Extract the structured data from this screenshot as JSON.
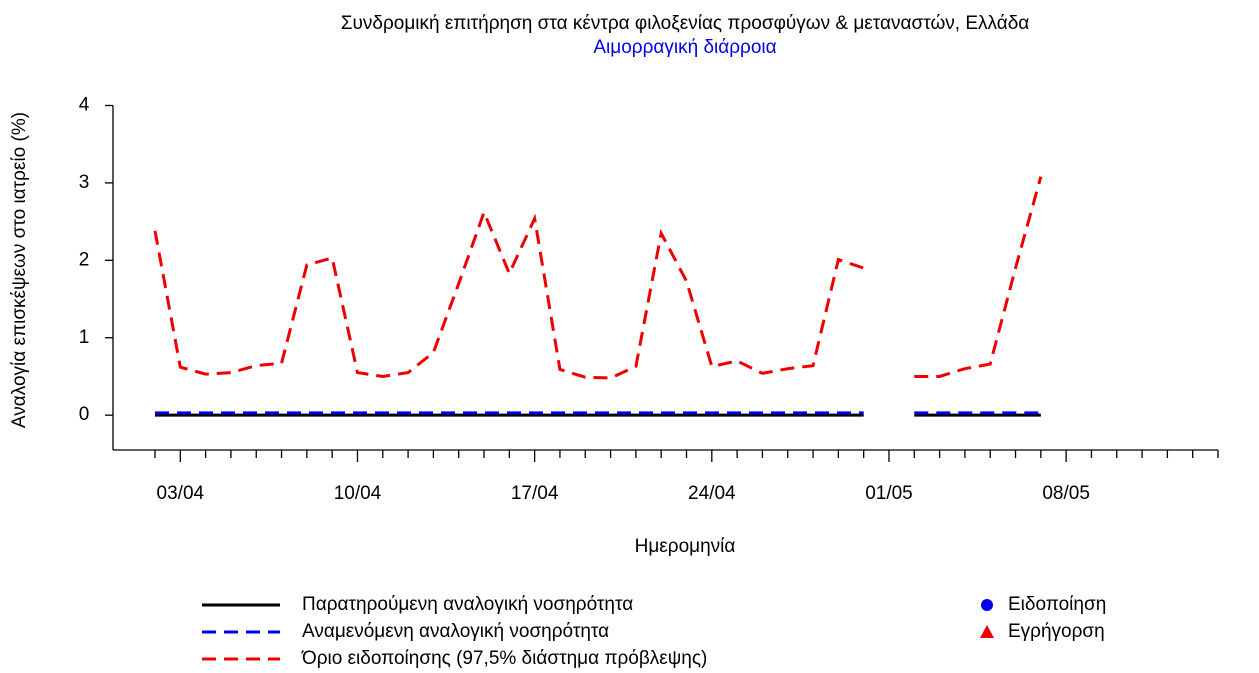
{
  "chart_data": {
    "type": "line",
    "title": "Συνδρομική επιτήρηση στα κέντρα φιλοξενίας προσφύγων & μεταναστών, Ελλάδα",
    "subtitle": "Αιμορραγική διάρροια",
    "subtitle_color": "#0000ee",
    "x_label": "Ημερομηνία",
    "y_label": "Αναλογία επισκέψεων στο ιατρείο (%)",
    "categories": [
      null,
      "03/04",
      null,
      null,
      null,
      null,
      null,
      null,
      "10/04",
      null,
      null,
      null,
      null,
      null,
      null,
      "17/04",
      null,
      null,
      null,
      null,
      null,
      null,
      "24/04",
      null,
      null,
      null,
      null,
      null,
      null,
      "01/05",
      null,
      null,
      null,
      null,
      null,
      null,
      "08/05",
      null,
      null,
      null,
      null,
      null,
      null
    ],
    "ylim": [
      -0.45,
      4.2
    ],
    "yticks": [
      0,
      1,
      2,
      3,
      4
    ],
    "series": [
      {
        "name": "Παρατηρούμενη αναλογική νοσηρότητα",
        "color": "#000000",
        "dash": "solid",
        "values": [
          0,
          0,
          0,
          0,
          0,
          0,
          0,
          0,
          0,
          0,
          0,
          0,
          0,
          0,
          0,
          0,
          0,
          0,
          0,
          0,
          0,
          0,
          0,
          0,
          0,
          0,
          0,
          0,
          0,
          null,
          0,
          0,
          0,
          0,
          0,
          0,
          null,
          null,
          null,
          null,
          null,
          null,
          null
        ]
      },
      {
        "name": "Αναμενόμενη αναλογική νοσηρότητα",
        "color": "#0000ee",
        "dash": "dashed",
        "values": [
          0.03,
          0.03,
          0.03,
          0.03,
          0.03,
          0.03,
          0.03,
          0.03,
          0.03,
          0.03,
          0.03,
          0.03,
          0.03,
          0.03,
          0.03,
          0.03,
          0.03,
          0.03,
          0.03,
          0.03,
          0.03,
          0.03,
          0.03,
          0.03,
          0.03,
          0.03,
          0.03,
          0.03,
          0.03,
          null,
          0.03,
          0.03,
          0.03,
          0.03,
          0.03,
          0.03,
          null,
          null,
          null,
          null,
          null,
          null,
          null
        ]
      },
      {
        "name": "Όριο ειδοποίησης (97,5% διάστημα πρόβλεψης)",
        "color": "#ee0000",
        "dash": "dashed",
        "values": [
          2.38,
          0.62,
          0.53,
          0.55,
          0.64,
          0.67,
          1.94,
          2.03,
          0.55,
          0.5,
          0.55,
          0.81,
          1.7,
          2.62,
          1.83,
          2.54,
          0.59,
          0.49,
          0.48,
          0.63,
          2.35,
          1.73,
          0.63,
          0.7,
          0.54,
          0.6,
          0.64,
          2.01,
          1.9,
          null,
          0.5,
          0.5,
          0.6,
          0.66,
          1.9,
          3.08,
          null,
          null,
          null,
          null,
          null,
          null,
          null
        ]
      }
    ],
    "markers": [
      {
        "name": "Ειδοποίηση",
        "color": "#0000ee",
        "shape": "circle"
      },
      {
        "name": "Εγρήγορση",
        "color": "#ee0000",
        "shape": "triangle"
      }
    ]
  }
}
